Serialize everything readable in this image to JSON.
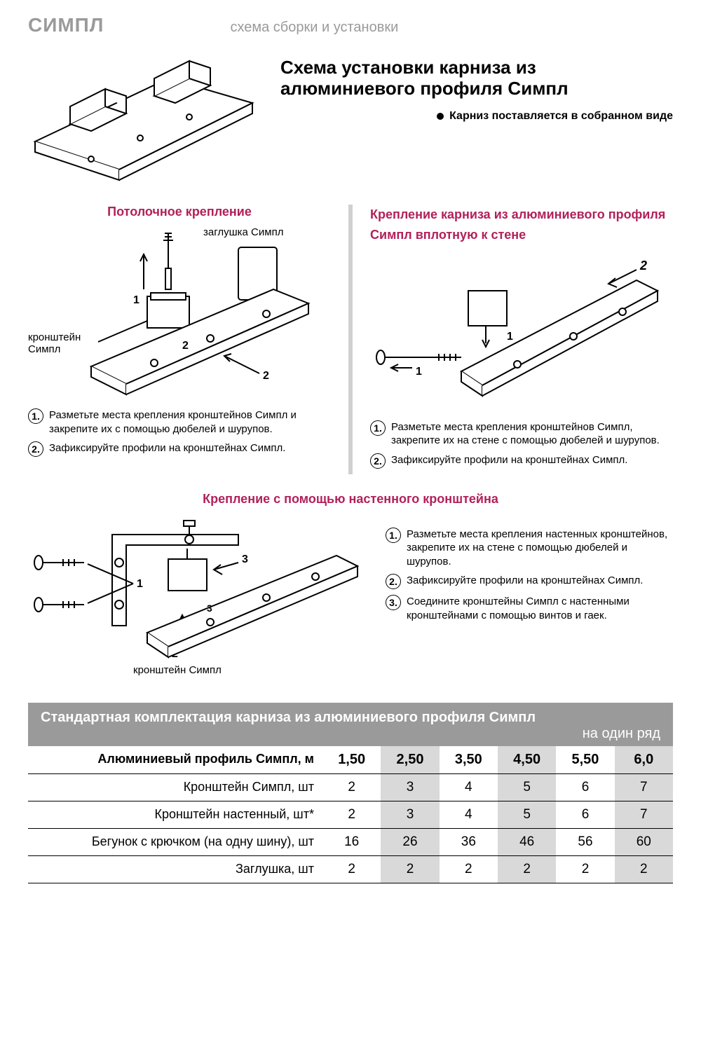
{
  "header": {
    "logo": "СИМПЛ",
    "subtitle": "схема сборки и установки"
  },
  "main": {
    "title": "Схема установки карниза из алюминиевого профиля Симпл",
    "bullet": "Карниз поставляется в собранном виде"
  },
  "ceiling": {
    "title": "Потолочное крепление",
    "label_plug": "заглушка Симпл",
    "label_bracket": "кронштейн Симпл",
    "steps": [
      "Разметьте места крепления кронштейнов Симпл и закрепите их с помощью дюбелей и шурупов.",
      "Зафиксируйте профили на кронштейнах Симпл."
    ]
  },
  "wall_close": {
    "title": "Крепление карниза из алюминиевого профиля Симпл вплотную к стене",
    "steps": [
      "Разметьте места крепления кронштейнов Симпл, закрепите их на стене с помощью дюбелей и шурупов.",
      "Зафиксируйте профили на кронштейнах Симпл."
    ]
  },
  "wall_bracket": {
    "title": "Крепление с помощью настенного кронштейна",
    "label_bracket": "кронштейн Симпл",
    "steps": [
      "Разметьте места крепления настенных кронштейнов, закрепите их на стене с помощью дюбелей и шурупов.",
      "Зафиксируйте профили на кронштейнах Симпл.",
      "Соедините кронштейны Симпл с настенными кронштейнами с помощью винтов и гаек."
    ]
  },
  "table": {
    "title": "Стандартная комплектация карниза из алюминиевого профиля Симпл",
    "title_sub": "на один ряд",
    "shaded_cols": [
      1,
      3,
      5
    ],
    "columns": [
      "1,50",
      "2,50",
      "3,50",
      "4,50",
      "5,50",
      "6,0"
    ],
    "rows": [
      {
        "label": "Алюминиевый профиль Симпл, м",
        "bold": true,
        "is_header": true
      },
      {
        "label": "Кронштейн Симпл, шт",
        "values": [
          "2",
          "3",
          "4",
          "5",
          "6",
          "7"
        ]
      },
      {
        "label": "Кронштейн настенный, шт*",
        "values": [
          "2",
          "3",
          "4",
          "5",
          "6",
          "7"
        ]
      },
      {
        "label": "Бегунок с крючком (на одну шину), шт",
        "values": [
          "16",
          "26",
          "36",
          "46",
          "56",
          "60"
        ]
      },
      {
        "label": "Заглушка, шт",
        "values": [
          "2",
          "2",
          "2",
          "2",
          "2",
          "2"
        ]
      }
    ]
  },
  "colors": {
    "accent": "#b2205a",
    "grey": "#9a9a9a",
    "shade": "#d9d9d9"
  }
}
